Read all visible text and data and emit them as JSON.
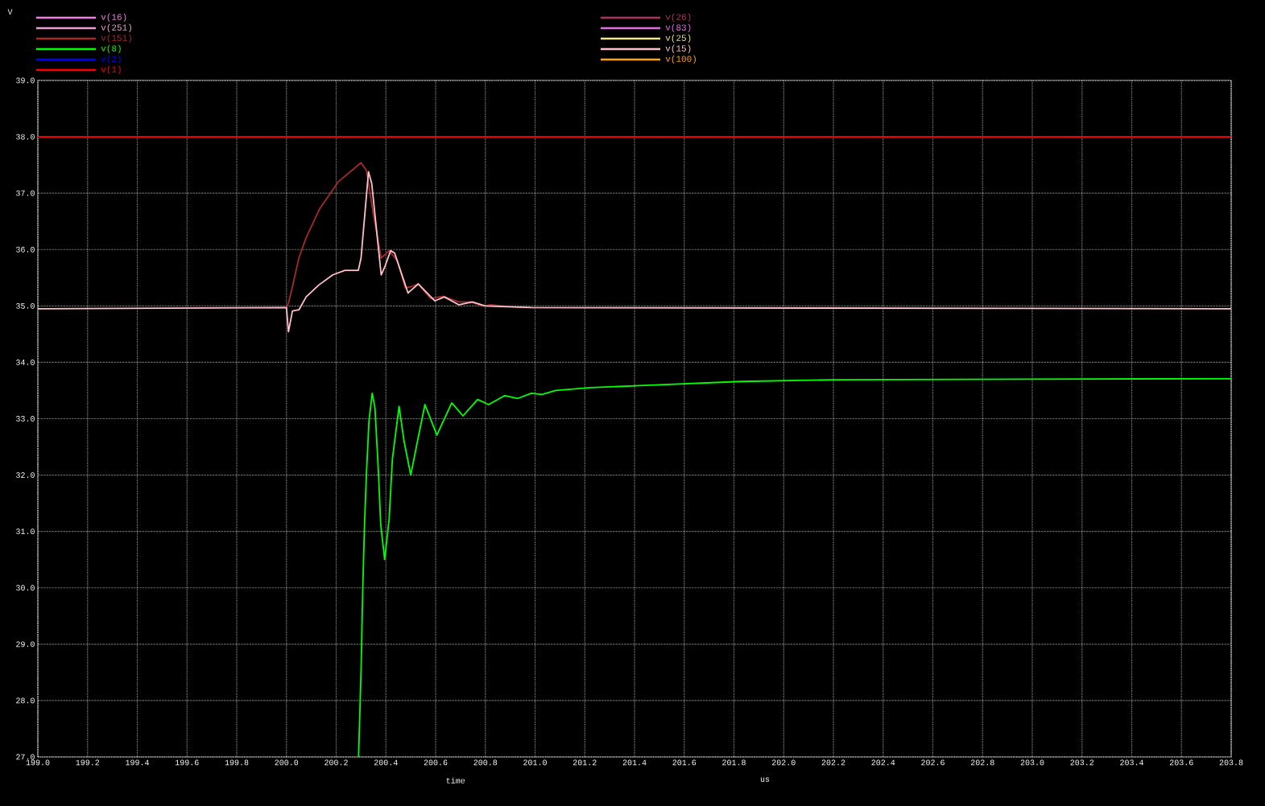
{
  "chart_data": {
    "type": "line",
    "xlabel": "time",
    "annotations": [
      "V",
      "us"
    ],
    "xlim": [
      199.0,
      203.8
    ],
    "ylim": [
      27.0,
      39.0
    ],
    "xticks": [
      {
        "value": 199.0,
        "label": "199.0"
      },
      {
        "value": 199.2,
        "label": "199.2"
      },
      {
        "value": 199.4,
        "label": "199.4"
      },
      {
        "value": 199.6,
        "label": "199.6"
      },
      {
        "value": 199.8,
        "label": "199.8"
      },
      {
        "value": 200.0,
        "label": "200.0"
      },
      {
        "value": 200.2,
        "label": "200.2"
      },
      {
        "value": 200.4,
        "label": "200.4"
      },
      {
        "value": 200.6,
        "label": "200.6"
      },
      {
        "value": 200.8,
        "label": "200.8"
      },
      {
        "value": 201.0,
        "label": "201.0"
      },
      {
        "value": 201.2,
        "label": "201.2"
      },
      {
        "value": 201.4,
        "label": "201.4"
      },
      {
        "value": 201.6,
        "label": "201.6"
      },
      {
        "value": 201.8,
        "label": "201.8"
      },
      {
        "value": 202.0,
        "label": "202.0"
      },
      {
        "value": 202.2,
        "label": "202.2"
      },
      {
        "value": 202.4,
        "label": "202.4"
      },
      {
        "value": 202.6,
        "label": "202.6"
      },
      {
        "value": 202.8,
        "label": "202.8"
      },
      {
        "value": 203.0,
        "label": "203.0"
      },
      {
        "value": 203.2,
        "label": "203.2"
      },
      {
        "value": 203.4,
        "label": "203.4"
      },
      {
        "value": 203.6,
        "label": "203.6"
      },
      {
        "value": 203.8,
        "label": "203.8"
      }
    ],
    "yticks": [
      {
        "value": 27,
        "label": "27.0"
      },
      {
        "value": 28,
        "label": "28.0"
      },
      {
        "value": 29,
        "label": "29.0"
      },
      {
        "value": 30,
        "label": "30.0"
      },
      {
        "value": 31,
        "label": "31.0"
      },
      {
        "value": 32,
        "label": "32.0"
      },
      {
        "value": 33,
        "label": "33.0"
      },
      {
        "value": 34,
        "label": "34.0"
      },
      {
        "value": 35,
        "label": "35.0"
      },
      {
        "value": 36,
        "label": "36.0"
      },
      {
        "value": 37,
        "label": "37.0"
      },
      {
        "value": 38,
        "label": "38.0"
      },
      {
        "value": 39,
        "label": "39.0"
      }
    ],
    "grid": true,
    "legend": "top",
    "series": [
      {
        "name": "v(16)",
        "color": "#f080e0",
        "values": [
          null
        ]
      },
      {
        "name": "v(26)",
        "color": "#b03060",
        "values": [
          null
        ]
      },
      {
        "name": "v(251)",
        "color": "#f0a0d0",
        "values": [
          null
        ]
      },
      {
        "name": "v(83)",
        "color": "#e070e0",
        "values": [
          null
        ]
      },
      {
        "name": "v(151)",
        "color": "#a52a2a",
        "x": [
          200.0,
          200.008,
          200.024,
          200.05,
          200.079,
          200.133,
          200.208,
          200.3,
          200.322,
          200.348,
          200.381,
          200.413,
          200.446,
          200.478,
          200.5,
          200.53,
          200.58,
          200.63,
          200.694,
          200.742,
          200.79,
          200.824,
          200.888
        ],
        "values": [
          34.97,
          35.05,
          35.34,
          35.85,
          36.21,
          36.72,
          37.2,
          37.54,
          37.4,
          36.67,
          35.85,
          35.98,
          35.8,
          35.32,
          35.34,
          35.39,
          35.13,
          35.17,
          35.07,
          35.07,
          35.0,
          35.02,
          34.99
        ]
      },
      {
        "name": "v(25)",
        "color": "#f0e68c",
        "values": [
          null
        ]
      },
      {
        "name": "v(8)",
        "color": "#00ff00",
        "x": [
          200.29,
          200.3,
          200.307,
          200.314,
          200.322,
          200.332,
          200.345,
          200.356,
          200.37,
          200.379,
          200.395,
          200.413,
          200.426,
          200.453,
          200.473,
          200.5,
          200.527,
          200.557,
          200.605,
          200.665,
          200.71,
          200.769,
          200.813,
          200.878,
          200.931,
          200.985,
          201.028,
          201.083,
          201.223,
          201.44,
          201.827,
          202.2,
          203.8
        ],
        "values": [
          27.0,
          28.52,
          29.99,
          31.13,
          32.05,
          32.96,
          33.45,
          33.19,
          32.05,
          31.13,
          30.5,
          31.22,
          32.28,
          33.22,
          32.6,
          32.0,
          32.6,
          33.25,
          32.71,
          33.28,
          33.05,
          33.34,
          33.25,
          33.41,
          33.36,
          33.45,
          33.43,
          33.5,
          33.55,
          33.59,
          33.66,
          33.69,
          33.71
        ]
      },
      {
        "name": "v(15)",
        "color": "#ffc0cb",
        "x": [
          199.0,
          200.0,
          200.008,
          200.024,
          200.05,
          200.079,
          200.13,
          200.186,
          200.235,
          200.289,
          200.3,
          200.33,
          200.343,
          200.381,
          200.397,
          200.419,
          200.435,
          200.489,
          200.53,
          200.597,
          200.635,
          200.694,
          200.748,
          200.8,
          200.985,
          203.8
        ],
        "values": [
          34.95,
          34.97,
          34.54,
          34.91,
          34.93,
          35.16,
          35.37,
          35.55,
          35.63,
          35.63,
          35.85,
          37.38,
          37.17,
          35.55,
          35.71,
          35.98,
          35.94,
          35.23,
          35.39,
          35.09,
          35.16,
          35.02,
          35.07,
          35.0,
          34.97,
          34.95
        ]
      },
      {
        "name": "v(2)",
        "color": "#0000ff",
        "values": [
          null
        ]
      },
      {
        "name": "v(100)",
        "color": "#ffa500",
        "values": [
          null
        ]
      },
      {
        "name": "v(1)",
        "color": "#ff0000",
        "x": [
          199.0,
          203.8
        ],
        "values": [
          38.0,
          38.0
        ]
      }
    ]
  }
}
